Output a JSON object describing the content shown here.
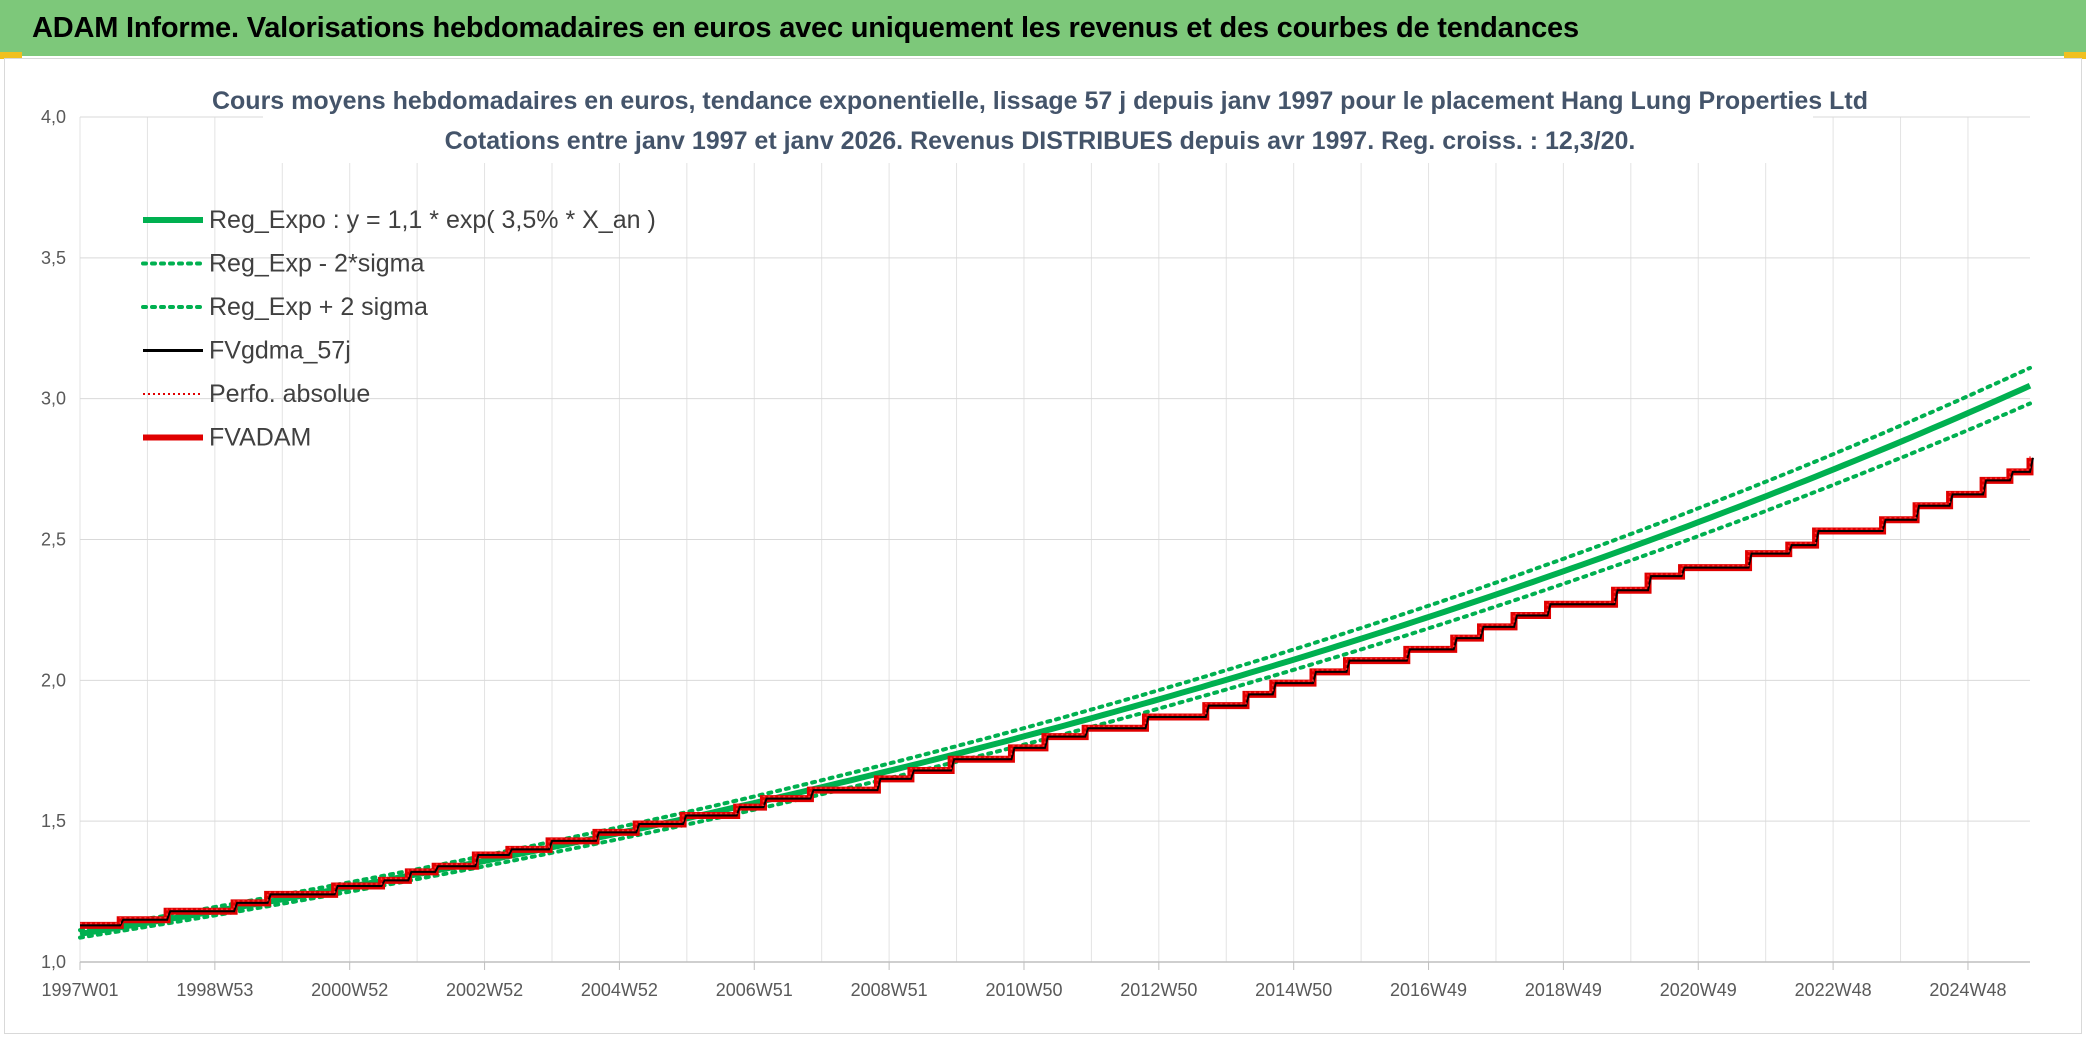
{
  "banner": {
    "title": "ADAM Informe. Valorisations hebdomadaires en euros avec uniquement les revenus et des courbes de tendances",
    "color": "#7dc87a"
  },
  "chart_data": {
    "type": "line",
    "title_line1": "Cours moyens hebdomadaires en euros, tendance exponentielle, lissage 57 j depuis janv 1997 pour le placement Hang Lung Properties Ltd",
    "title_line2": "Cotations entre janv 1997 et janv 2026. Revenus DISTRIBUES depuis avr 1997. Reg. croiss. : 12,3/20.",
    "x_tick_labels": [
      "1997W01",
      "1998W53",
      "2000W52",
      "2002W52",
      "2004W52",
      "2006W51",
      "2008W51",
      "2010W50",
      "2012W50",
      "2014W50",
      "2016W49",
      "2018W49",
      "2020W49",
      "2022W48",
      "2024W48"
    ],
    "x_range_years": [
      1997.0,
      2026.1
    ],
    "y_tick_labels": [
      "1,0",
      "1,5",
      "2,0",
      "2,5",
      "3,0",
      "3,5",
      "4,0"
    ],
    "y_ticks": [
      1.0,
      1.5,
      2.0,
      2.5,
      3.0,
      3.5,
      4.0
    ],
    "ylim": [
      1.0,
      4.0
    ],
    "grid": true,
    "legend_position": "top-left",
    "reg_expo": {
      "a": 1.1,
      "rate": 0.035,
      "start_year": 1997.0,
      "end_year": 2026.1
    },
    "legend": [
      {
        "label": "Reg_Expo : y = 1,1 * exp( 3,5% *  X_an )",
        "color": "#00b050",
        "style": "solid-thick"
      },
      {
        "label": "Reg_Exp - 2*sigma",
        "color": "#00b050",
        "style": "dotted"
      },
      {
        "label": "Reg_Exp + 2 sigma",
        "color": "#00b050",
        "style": "dotted"
      },
      {
        "label": "FVgdma_57j",
        "color": "#000000",
        "style": "solid"
      },
      {
        "label": "Perfo. absolue",
        "color": "#e00000",
        "style": "dotted-thin"
      },
      {
        "label": "FVADAM",
        "color": "#e00000",
        "style": "solid-thick"
      }
    ],
    "series": [
      {
        "name": "Reg_Expo : y = 1,1 * exp( 3,5% *  X_an )",
        "x": [
          1997.0,
          2026.1
        ],
        "note_formula": "y = 1,1 * exp( 3,5% *  X_an )"
      },
      {
        "name": "Reg_Exp - 2*sigma",
        "x": [
          1997.0,
          2026.1
        ]
      },
      {
        "name": "Reg_Exp + 2 sigma",
        "x": [
          1997.0,
          2026.1
        ]
      },
      {
        "name": "FVADAM",
        "steps": [
          {
            "x": 1997.0,
            "y": 1.13
          },
          {
            "x": 1997.6,
            "y": 1.15
          },
          {
            "x": 1998.3,
            "y": 1.18
          },
          {
            "x": 1999.3,
            "y": 1.21
          },
          {
            "x": 1999.8,
            "y": 1.24
          },
          {
            "x": 2000.8,
            "y": 1.27
          },
          {
            "x": 2001.5,
            "y": 1.29
          },
          {
            "x": 2001.9,
            "y": 1.32
          },
          {
            "x": 2002.3,
            "y": 1.34
          },
          {
            "x": 2002.9,
            "y": 1.38
          },
          {
            "x": 2003.4,
            "y": 1.4
          },
          {
            "x": 2004.0,
            "y": 1.43
          },
          {
            "x": 2004.7,
            "y": 1.46
          },
          {
            "x": 2005.3,
            "y": 1.49
          },
          {
            "x": 2006.0,
            "y": 1.52
          },
          {
            "x": 2006.8,
            "y": 1.55
          },
          {
            "x": 2007.2,
            "y": 1.58
          },
          {
            "x": 2007.9,
            "y": 1.61
          },
          {
            "x": 2008.9,
            "y": 1.65
          },
          {
            "x": 2009.4,
            "y": 1.68
          },
          {
            "x": 2010.0,
            "y": 1.72
          },
          {
            "x": 2010.9,
            "y": 1.76
          },
          {
            "x": 2011.4,
            "y": 1.8
          },
          {
            "x": 2012.0,
            "y": 1.83
          },
          {
            "x": 2012.9,
            "y": 1.87
          },
          {
            "x": 2013.8,
            "y": 1.91
          },
          {
            "x": 2014.4,
            "y": 1.95
          },
          {
            "x": 2014.8,
            "y": 1.99
          },
          {
            "x": 2015.4,
            "y": 2.03
          },
          {
            "x": 2015.9,
            "y": 2.07
          },
          {
            "x": 2016.8,
            "y": 2.11
          },
          {
            "x": 2017.5,
            "y": 2.15
          },
          {
            "x": 2017.9,
            "y": 2.19
          },
          {
            "x": 2018.4,
            "y": 2.23
          },
          {
            "x": 2018.9,
            "y": 2.27
          },
          {
            "x": 2019.9,
            "y": 2.32
          },
          {
            "x": 2020.4,
            "y": 2.37
          },
          {
            "x": 2020.9,
            "y": 2.4
          },
          {
            "x": 2021.9,
            "y": 2.45
          },
          {
            "x": 2022.5,
            "y": 2.48
          },
          {
            "x": 2022.9,
            "y": 2.53
          },
          {
            "x": 2023.9,
            "y": 2.57
          },
          {
            "x": 2024.4,
            "y": 2.62
          },
          {
            "x": 2024.9,
            "y": 2.66
          },
          {
            "x": 2025.4,
            "y": 2.71
          },
          {
            "x": 2025.8,
            "y": 2.74
          },
          {
            "x": 2026.1,
            "y": 2.79
          }
        ]
      }
    ]
  }
}
